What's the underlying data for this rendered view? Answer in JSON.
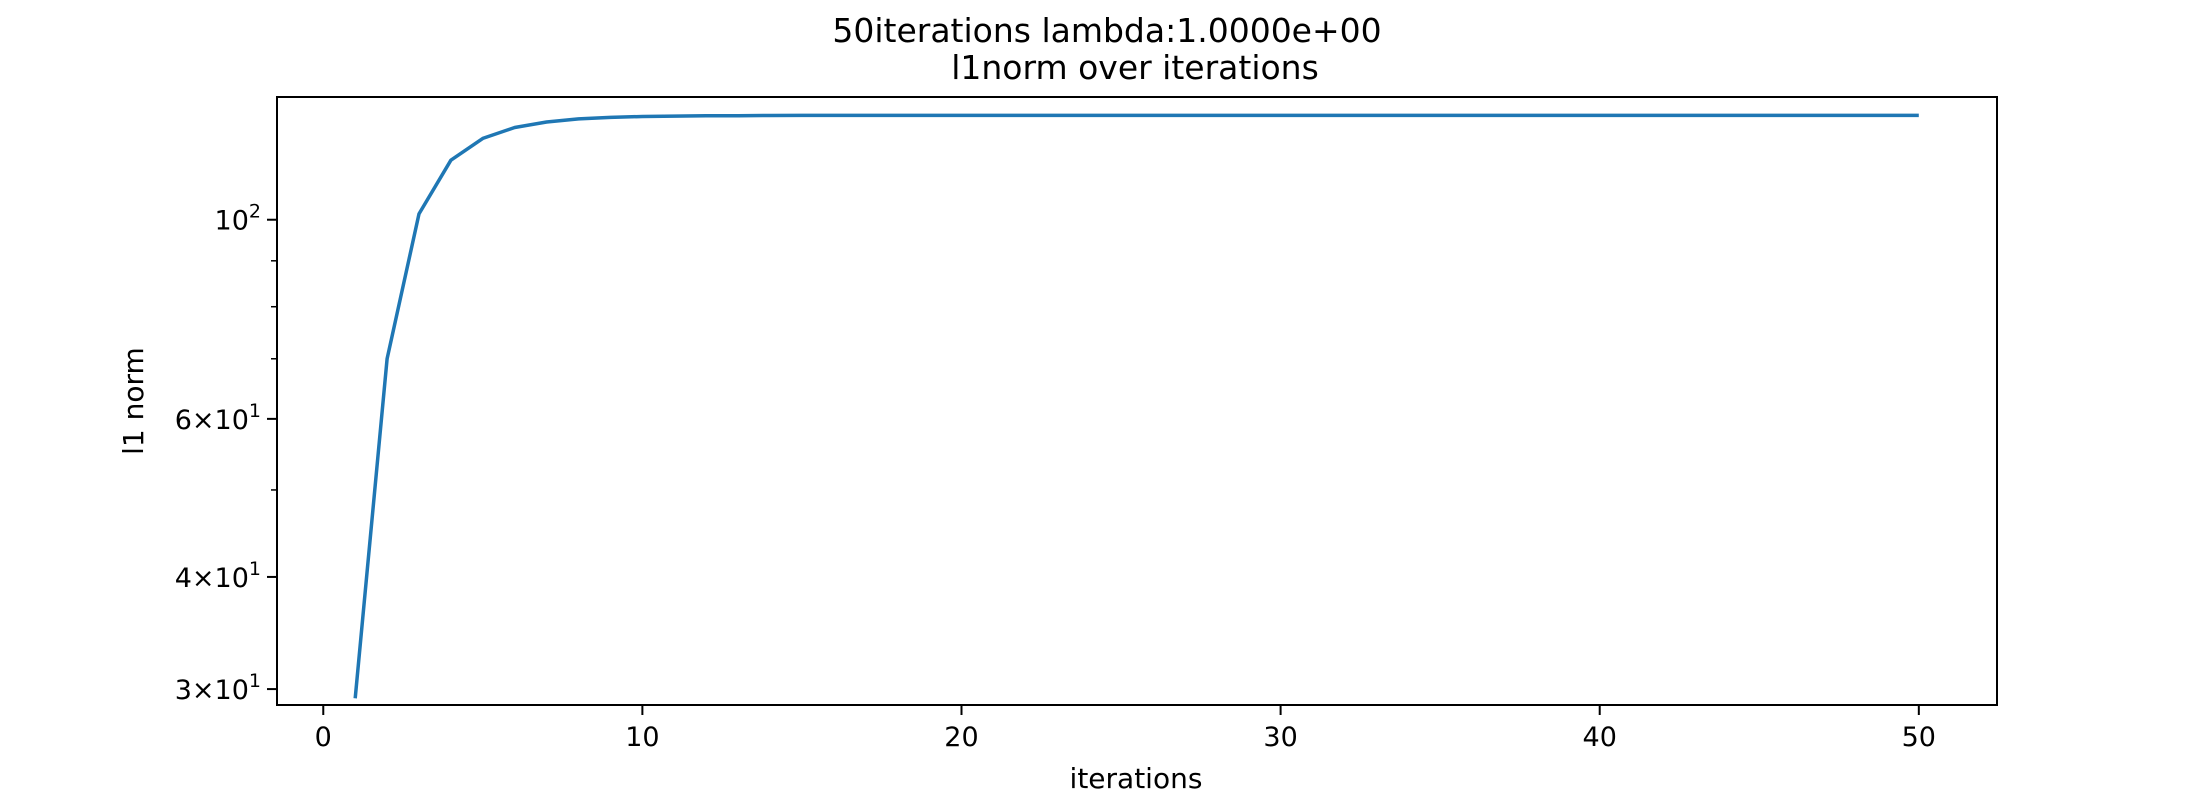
{
  "chart_data": {
    "type": "line",
    "title": "50iterations lambda:1.0000e+00",
    "subtitle": "l1norm over iterations",
    "xlabel": "iterations",
    "ylabel": "l1 norm",
    "yscale": "log",
    "xlim": [
      -1.45,
      52.45
    ],
    "ylim": [
      28.8,
      137
    ],
    "grid": false,
    "x_ticks": [
      {
        "value": 0,
        "label": "0"
      },
      {
        "value": 10,
        "label": "10"
      },
      {
        "value": 20,
        "label": "20"
      },
      {
        "value": 30,
        "label": "30"
      },
      {
        "value": 40,
        "label": "40"
      },
      {
        "value": 50,
        "label": "50"
      }
    ],
    "y_ticks": [
      {
        "value": 30,
        "base": "3×10",
        "exp": "1"
      },
      {
        "value": 40,
        "base": "4×10",
        "exp": "1"
      },
      {
        "value": 60,
        "base": "6×10",
        "exp": "1"
      },
      {
        "value": 100,
        "base": "10",
        "exp": "2"
      }
    ],
    "y_minor_ticks": [
      50,
      70,
      80,
      90
    ],
    "series": [
      {
        "color": "#1f77b4",
        "x": [
          1,
          2,
          3,
          4,
          5,
          6,
          7,
          8,
          9,
          10,
          11,
          12,
          13,
          14,
          15,
          16,
          17,
          18,
          19,
          20,
          21,
          22,
          23,
          24,
          25,
          26,
          27,
          28,
          29,
          30,
          31,
          32,
          33,
          34,
          35,
          36,
          37,
          38,
          39,
          40,
          41,
          42,
          43,
          44,
          45,
          46,
          47,
          48,
          49,
          50
        ],
        "y": [
          29.3,
          70.0,
          101.5,
          116.5,
          123.2,
          126.7,
          128.5,
          129.5,
          130.0,
          130.3,
          130.45,
          130.55,
          130.6,
          130.65,
          130.7,
          130.7,
          130.7,
          130.7,
          130.7,
          130.7,
          130.7,
          130.7,
          130.7,
          130.7,
          130.7,
          130.7,
          130.7,
          130.7,
          130.7,
          130.7,
          130.7,
          130.7,
          130.7,
          130.7,
          130.7,
          130.7,
          130.7,
          130.7,
          130.7,
          130.7,
          130.7,
          130.7,
          130.7,
          130.7,
          130.7,
          130.7,
          130.7,
          130.7,
          130.7,
          130.7
        ]
      }
    ]
  }
}
